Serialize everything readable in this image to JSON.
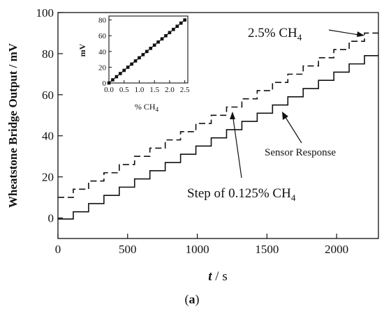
{
  "chart_data": {
    "main": {
      "type": "line",
      "xlabel_italic": "t",
      "xlabel_rest": " / s",
      "ylabel": "Wheatstone Bridge Output / mV",
      "xlim": [
        0,
        2300
      ],
      "ylim": [
        -10,
        100
      ],
      "xticks": [
        0,
        500,
        1000,
        1500,
        2000
      ],
      "yticks": [
        0,
        20,
        40,
        60,
        80,
        100
      ],
      "grid": false,
      "series": [
        {
          "style": "dashed",
          "step_seconds": 110,
          "x": [
            0,
            110,
            220,
            330,
            440,
            550,
            660,
            770,
            880,
            990,
            1100,
            1210,
            1320,
            1430,
            1540,
            1650,
            1760,
            1870,
            1980,
            2090,
            2200,
            2300
          ],
          "values": [
            10,
            14,
            18,
            22,
            26,
            30,
            34,
            38,
            42,
            46,
            50,
            54,
            58,
            62,
            66,
            70,
            74,
            78,
            82,
            86,
            90,
            90
          ]
        },
        {
          "style": "solid",
          "step_seconds": 110,
          "x": [
            0,
            110,
            220,
            330,
            440,
            550,
            660,
            770,
            880,
            990,
            1100,
            1210,
            1320,
            1430,
            1540,
            1650,
            1760,
            1870,
            1980,
            2090,
            2200,
            2300
          ],
          "values": [
            -0.5,
            3,
            7,
            11,
            15,
            19,
            23,
            27,
            31,
            35,
            39,
            43,
            47,
            51,
            55,
            59,
            63,
            67,
            71,
            75,
            79,
            79
          ]
        }
      ],
      "annotations": {
        "top_right": "2.5% CH",
        "top_right_sub": "4",
        "sensor": "Sensor Response",
        "step_prefix": "Step of 0.125% CH",
        "step_sub": "4"
      }
    },
    "inset": {
      "type": "scatter",
      "xlabel": "% CH",
      "xlabel_sub": "4",
      "ylabel": "mV",
      "xlim": [
        0,
        2.6
      ],
      "ylim": [
        0,
        85
      ],
      "xticks": [
        "0.0",
        "0.5",
        "1.0",
        "1.5",
        "2.0",
        "2.5"
      ],
      "yticks": [
        0,
        20,
        40,
        60,
        80
      ],
      "x": [
        0,
        0.125,
        0.25,
        0.375,
        0.5,
        0.625,
        0.75,
        0.875,
        1.0,
        1.125,
        1.25,
        1.375,
        1.5,
        1.625,
        1.75,
        1.875,
        2.0,
        2.125,
        2.25,
        2.375,
        2.5
      ],
      "values": [
        0,
        4,
        8,
        12,
        16,
        20,
        24,
        28,
        32,
        36,
        40,
        44,
        48,
        52,
        56,
        60,
        64,
        68,
        72,
        76,
        80
      ]
    }
  },
  "caption": {
    "open": "(",
    "letter": "a",
    "close": ")"
  }
}
